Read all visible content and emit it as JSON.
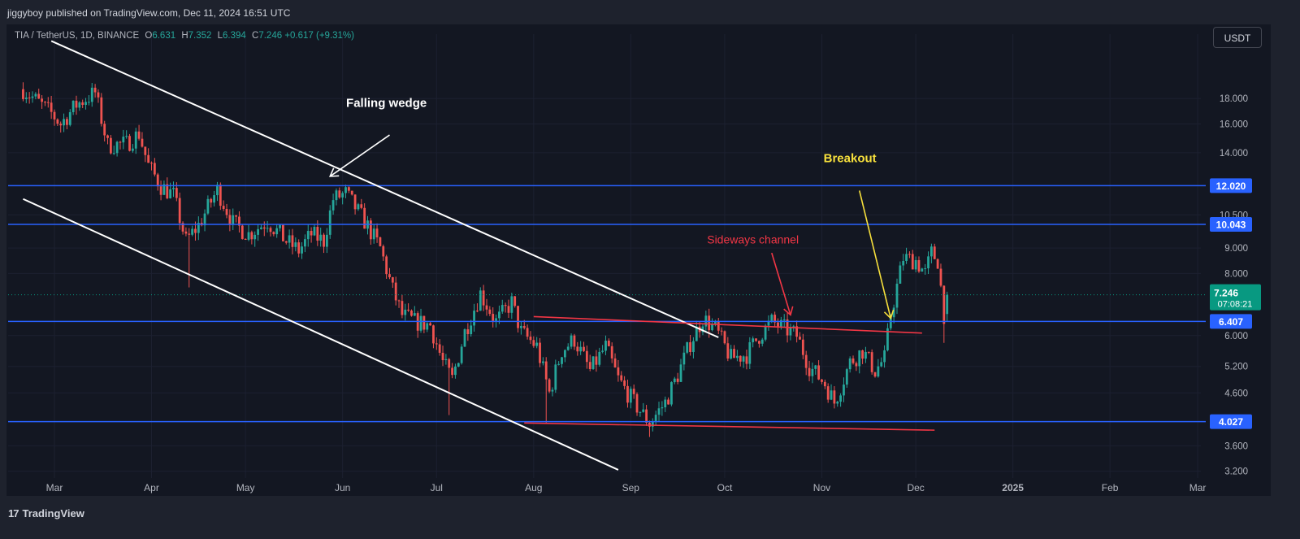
{
  "header": {
    "published": "jiggyboy published on TradingView.com, Dec 11, 2024 16:51 UTC"
  },
  "symbol": {
    "name": "TIA / TetherUS, 1D, BINANCE",
    "o_label": "O",
    "o": "6.631",
    "h_label": "H",
    "h": "7.352",
    "l_label": "L",
    "l": "6.394",
    "c_label": "C",
    "c": "7.246",
    "change": "+0.617 (+9.31%)"
  },
  "currency": "USDT",
  "footer": {
    "brand": "TradingView",
    "mark": "17"
  },
  "colors": {
    "background": "#131722",
    "up": "#26a69a",
    "down": "#ef5350",
    "level_line": "#2962ff",
    "wedge": "#ffffff",
    "channel": "#f23645",
    "breakout": "#f7e03c",
    "current_price": "#089981"
  },
  "chart_data": {
    "type": "candlestick",
    "scale": "log",
    "ylim": [
      3.1,
      22.5
    ],
    "x_ticks": [
      "Mar",
      "Apr",
      "May",
      "Jun",
      "Jul",
      "Aug",
      "Sep",
      "Oct",
      "Nov",
      "Dec",
      "2025",
      "Feb",
      "Mar"
    ],
    "y_ticks": [
      "3.200",
      "3.600",
      "4.600",
      "5.200",
      "6.000",
      "8.000",
      "9.000",
      "10.500",
      "14.000",
      "16.000",
      "18.000"
    ],
    "price_levels": [
      {
        "label": "12.020",
        "value": 12.02
      },
      {
        "label": "10.043",
        "value": 10.043
      },
      {
        "label": "6.407",
        "value": 6.407
      },
      {
        "label": "4.027",
        "value": 4.027
      }
    ],
    "current": {
      "price": "7.246",
      "countdown": "07:08:21",
      "value": 7.246
    },
    "start_date": "2024-02-20",
    "end_date": "2024-12-11",
    "anchors": [
      [
        "2024-02-20",
        18.8
      ],
      [
        "2024-02-29",
        16.8
      ],
      [
        "2024-03-03",
        16.0
      ],
      [
        "2024-03-08",
        17.5
      ],
      [
        "2024-03-14",
        18.5
      ],
      [
        "2024-03-18",
        14.5
      ],
      [
        "2024-03-24",
        14.6
      ],
      [
        "2024-03-28",
        15.3
      ],
      [
        "2024-03-31",
        13.2
      ],
      [
        "2024-04-04",
        12.0
      ],
      [
        "2024-04-08",
        11.5
      ],
      [
        "2024-04-12",
        9.3
      ],
      [
        "2024-04-16",
        10.0
      ],
      [
        "2024-04-22",
        11.8
      ],
      [
        "2024-04-27",
        10.1
      ],
      [
        "2024-05-02",
        9.6
      ],
      [
        "2024-05-08",
        10.2
      ],
      [
        "2024-05-14",
        9.3
      ],
      [
        "2024-05-18",
        8.9
      ],
      [
        "2024-05-22",
        9.6
      ],
      [
        "2024-05-26",
        9.3
      ],
      [
        "2024-05-29",
        11.3
      ],
      [
        "2024-06-02",
        11.6
      ],
      [
        "2024-06-08",
        10.2
      ],
      [
        "2024-06-13",
        9.0
      ],
      [
        "2024-06-17",
        7.4
      ],
      [
        "2024-06-20",
        6.6
      ],
      [
        "2024-06-24",
        6.4
      ],
      [
        "2024-06-29",
        6.3
      ],
      [
        "2024-07-03",
        5.3
      ],
      [
        "2024-07-06",
        4.9
      ],
      [
        "2024-07-10",
        6.1
      ],
      [
        "2024-07-15",
        7.3
      ],
      [
        "2024-07-20",
        6.4
      ],
      [
        "2024-07-25",
        7.0
      ],
      [
        "2024-07-28",
        6.1
      ],
      [
        "2024-08-02",
        5.7
      ],
      [
        "2024-08-06",
        4.6
      ],
      [
        "2024-08-10",
        5.6
      ],
      [
        "2024-08-14",
        5.9
      ],
      [
        "2024-08-19",
        5.1
      ],
      [
        "2024-08-24",
        5.7
      ],
      [
        "2024-08-28",
        4.9
      ],
      [
        "2024-09-02",
        4.4
      ],
      [
        "2024-09-07",
        4.0
      ],
      [
        "2024-09-12",
        4.4
      ],
      [
        "2024-09-16",
        5.0
      ],
      [
        "2024-09-20",
        5.8
      ],
      [
        "2024-09-24",
        6.5
      ],
      [
        "2024-09-28",
        6.2
      ],
      [
        "2024-10-03",
        5.4
      ],
      [
        "2024-10-08",
        5.5
      ],
      [
        "2024-10-12",
        6.0
      ],
      [
        "2024-10-16",
        6.4
      ],
      [
        "2024-10-20",
        6.2
      ],
      [
        "2024-10-24",
        6.0
      ],
      [
        "2024-10-28",
        5.2
      ],
      [
        "2024-11-02",
        4.8
      ],
      [
        "2024-11-05",
        4.4
      ],
      [
        "2024-11-10",
        5.3
      ],
      [
        "2024-11-14",
        5.6
      ],
      [
        "2024-11-18",
        5.1
      ],
      [
        "2024-11-21",
        5.4
      ],
      [
        "2024-11-23",
        6.6
      ],
      [
        "2024-11-27",
        8.6
      ],
      [
        "2024-12-01",
        8.5
      ],
      [
        "2024-12-04",
        8.0
      ],
      [
        "2024-12-06",
        8.8
      ],
      [
        "2024-12-08",
        8.5
      ],
      [
        "2024-12-10",
        6.63
      ],
      [
        "2024-12-11",
        7.246
      ]
    ],
    "annotations": [
      {
        "text": "Falling wedge",
        "color": "#ffffff"
      },
      {
        "text": "Breakout",
        "color": "#f7e03c"
      },
      {
        "text": "Sideways channel",
        "color": "#f23645"
      }
    ]
  }
}
